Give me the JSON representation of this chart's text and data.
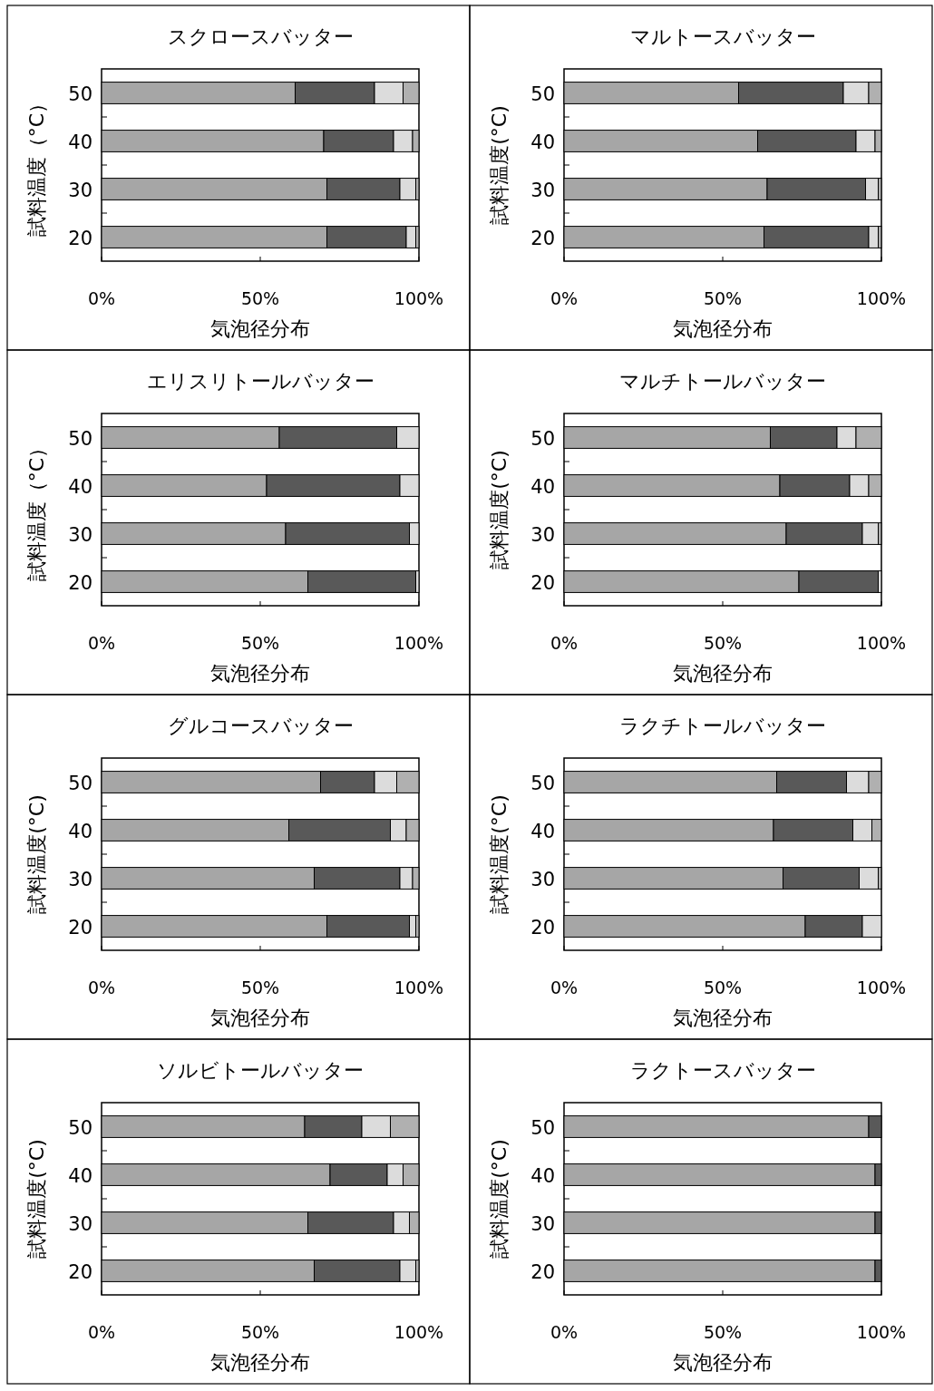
{
  "chart_data": [
    {
      "type": "bar",
      "orientation": "horizontal",
      "stacked": true,
      "title": "スクロースバッター",
      "xlabel": "気泡径分布",
      "ylabel": "試料温度（°C）",
      "categories": [
        "50",
        "40",
        "30",
        "20"
      ],
      "xlim": [
        0,
        100
      ],
      "xticks": [
        {
          "value": 0,
          "label": "0%"
        },
        {
          "value": 50,
          "label": "50%"
        },
        {
          "value": 100,
          "label": "100%"
        }
      ],
      "series": [
        {
          "color": "#a6a6a6",
          "values": [
            61,
            70,
            71,
            71
          ]
        },
        {
          "color": "#595959",
          "values": [
            25,
            22,
            23,
            25
          ]
        },
        {
          "color": "#dcdcdc",
          "values": [
            9,
            6,
            5,
            3
          ]
        },
        {
          "color": "#b0b0b0",
          "values": [
            5,
            2,
            1,
            1
          ]
        }
      ]
    },
    {
      "type": "bar",
      "orientation": "horizontal",
      "stacked": true,
      "title": "マルトースバッター",
      "xlabel": "気泡径分布",
      "ylabel": "試料温度(°C)",
      "categories": [
        "50",
        "40",
        "30",
        "20"
      ],
      "xlim": [
        0,
        100
      ],
      "xticks": [
        {
          "value": 0,
          "label": "0%"
        },
        {
          "value": 50,
          "label": "50%"
        },
        {
          "value": 100,
          "label": "100%"
        }
      ],
      "series": [
        {
          "color": "#a6a6a6",
          "values": [
            55,
            61,
            64,
            63
          ]
        },
        {
          "color": "#595959",
          "values": [
            33,
            31,
            31,
            33
          ]
        },
        {
          "color": "#dcdcdc",
          "values": [
            8,
            6,
            4,
            3
          ]
        },
        {
          "color": "#b0b0b0",
          "values": [
            4,
            2,
            1,
            1
          ]
        }
      ]
    },
    {
      "type": "bar",
      "orientation": "horizontal",
      "stacked": true,
      "title": "エリスリトールバッター",
      "xlabel": "気泡径分布",
      "ylabel": "試料温度（°C）",
      "categories": [
        "50",
        "40",
        "30",
        "20"
      ],
      "xlim": [
        0,
        100
      ],
      "xticks": [
        {
          "value": 0,
          "label": "0%"
        },
        {
          "value": 50,
          "label": "50%"
        },
        {
          "value": 100,
          "label": "100%"
        }
      ],
      "series": [
        {
          "color": "#a6a6a6",
          "values": [
            56,
            52,
            58,
            65
          ]
        },
        {
          "color": "#595959",
          "values": [
            37,
            42,
            39,
            34
          ]
        },
        {
          "color": "#dcdcdc",
          "values": [
            7,
            6,
            3,
            1
          ]
        }
      ]
    },
    {
      "type": "bar",
      "orientation": "horizontal",
      "stacked": true,
      "title": "マルチトールバッター",
      "xlabel": "気泡径分布",
      "ylabel": "試料温度(°C)",
      "categories": [
        "50",
        "40",
        "30",
        "20"
      ],
      "xlim": [
        0,
        100
      ],
      "xticks": [
        {
          "value": 0,
          "label": "0%"
        },
        {
          "value": 50,
          "label": "50%"
        },
        {
          "value": 100,
          "label": "100%"
        }
      ],
      "series": [
        {
          "color": "#a6a6a6",
          "values": [
            65,
            68,
            70,
            74
          ]
        },
        {
          "color": "#595959",
          "values": [
            21,
            22,
            24,
            25
          ]
        },
        {
          "color": "#dcdcdc",
          "values": [
            6,
            6,
            5,
            1
          ]
        },
        {
          "color": "#b0b0b0",
          "values": [
            8,
            4,
            1,
            null
          ]
        }
      ]
    },
    {
      "type": "bar",
      "orientation": "horizontal",
      "stacked": true,
      "title": "グルコースバッター",
      "xlabel": "気泡径分布",
      "ylabel": "試料温度(°C)",
      "categories": [
        "50",
        "40",
        "30",
        "20"
      ],
      "xlim": [
        0,
        100
      ],
      "xticks": [
        {
          "value": 0,
          "label": "0%"
        },
        {
          "value": 50,
          "label": "50%"
        },
        {
          "value": 100,
          "label": "100%"
        }
      ],
      "series": [
        {
          "color": "#a6a6a6",
          "values": [
            69,
            59,
            67,
            71
          ]
        },
        {
          "color": "#595959",
          "values": [
            17,
            32,
            27,
            26
          ]
        },
        {
          "color": "#dcdcdc",
          "values": [
            7,
            5,
            4,
            2
          ]
        },
        {
          "color": "#b0b0b0",
          "values": [
            7,
            4,
            2,
            1
          ]
        }
      ]
    },
    {
      "type": "bar",
      "orientation": "horizontal",
      "stacked": true,
      "title": "ラクチトールバッター",
      "xlabel": "気泡径分布",
      "ylabel": "試料温度(°C)",
      "categories": [
        "50",
        "40",
        "30",
        "20"
      ],
      "xlim": [
        0,
        100
      ],
      "xticks": [
        {
          "value": 0,
          "label": "0%"
        },
        {
          "value": 50,
          "label": "50%"
        },
        {
          "value": 100,
          "label": "100%"
        }
      ],
      "series": [
        {
          "color": "#a6a6a6",
          "values": [
            67,
            66,
            69,
            76
          ]
        },
        {
          "color": "#595959",
          "values": [
            22,
            25,
            24,
            18
          ]
        },
        {
          "color": "#dcdcdc",
          "values": [
            7,
            6,
            6,
            6
          ]
        },
        {
          "color": "#b0b0b0",
          "values": [
            4,
            3,
            1,
            null
          ]
        }
      ]
    },
    {
      "type": "bar",
      "orientation": "horizontal",
      "stacked": true,
      "title": "ソルビトールバッター",
      "xlabel": "気泡径分布",
      "ylabel": "試料温度(°C)",
      "categories": [
        "50",
        "40",
        "30",
        "20"
      ],
      "xlim": [
        0,
        100
      ],
      "xticks": [
        {
          "value": 0,
          "label": "0%"
        },
        {
          "value": 50,
          "label": "50%"
        },
        {
          "value": 100,
          "label": "100%"
        }
      ],
      "series": [
        {
          "color": "#a6a6a6",
          "values": [
            64,
            72,
            65,
            67
          ]
        },
        {
          "color": "#595959",
          "values": [
            18,
            18,
            27,
            27
          ]
        },
        {
          "color": "#dcdcdc",
          "values": [
            9,
            5,
            5,
            5
          ]
        },
        {
          "color": "#b0b0b0",
          "values": [
            9,
            5,
            3,
            1
          ]
        }
      ]
    },
    {
      "type": "bar",
      "orientation": "horizontal",
      "stacked": true,
      "title": "ラクトースバッター",
      "xlabel": "気泡径分布",
      "ylabel": "試料温度(°C)",
      "categories": [
        "50",
        "40",
        "30",
        "20"
      ],
      "xlim": [
        0,
        100
      ],
      "xticks": [
        {
          "value": 0,
          "label": "0%"
        },
        {
          "value": 50,
          "label": "50%"
        },
        {
          "value": 100,
          "label": "100%"
        }
      ],
      "series": [
        {
          "color": "#a6a6a6",
          "values": [
            96,
            98,
            98,
            98
          ]
        },
        {
          "color": "#595959",
          "values": [
            4,
            2,
            2,
            2
          ]
        }
      ]
    }
  ]
}
